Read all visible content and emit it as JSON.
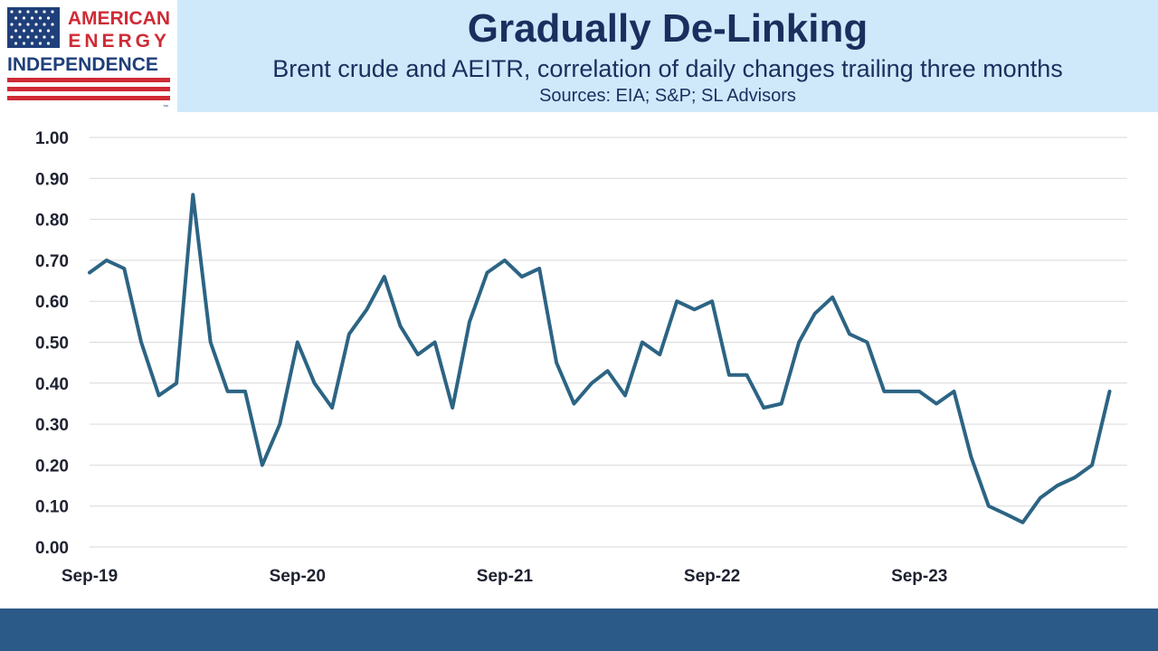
{
  "logo": {
    "line1": "AMERICAN",
    "line2": "ENERGY",
    "line3": "INDEPENDENCE",
    "trademark": "™"
  },
  "header": {
    "title": "Gradually De-Linking",
    "subtitle": "Brent crude and AEITR, correlation of daily changes trailing three months",
    "sources": "Sources: EIA; S&P; SL Advisors"
  },
  "colors": {
    "line": "#2c6484",
    "header_bg": "#cfe9fb",
    "title_text": "#1b2f5e",
    "footer_bg": "#2b5988",
    "flag_red": "#cf2b36",
    "flag_blue": "#1f3f7a"
  },
  "chart_data": {
    "type": "line",
    "title": "Gradually De-Linking",
    "subtitle": "Brent crude and AEITR, correlation of daily changes trailing three months",
    "xlabel": "",
    "ylabel": "",
    "ylim": [
      0,
      1.0
    ],
    "xlim": [
      "2019-09",
      "2024-09"
    ],
    "yticks": [
      "1.00",
      "0.90",
      "0.80",
      "0.70",
      "0.60",
      "0.50",
      "0.40",
      "0.30",
      "0.20",
      "0.10",
      "0.00"
    ],
    "xticks": [
      "Sep-19",
      "Sep-20",
      "Sep-21",
      "Sep-22",
      "Sep-23"
    ],
    "grid": "horizontal",
    "legend": "none",
    "series": [
      {
        "x": [
          "2019-09",
          "2019-10",
          "2019-11",
          "2019-12",
          "2020-01",
          "2020-02",
          "2020-03",
          "2020-04",
          "2020-05",
          "2020-06",
          "2020-07",
          "2020-08",
          "2020-09",
          "2020-10",
          "2020-11",
          "2020-12",
          "2021-01",
          "2021-02",
          "2021-03",
          "2021-04",
          "2021-05",
          "2021-06",
          "2021-07",
          "2021-08",
          "2021-09",
          "2021-10",
          "2021-11",
          "2021-12",
          "2022-01",
          "2022-02",
          "2022-03",
          "2022-04",
          "2022-05",
          "2022-06",
          "2022-07",
          "2022-08",
          "2022-09",
          "2022-10",
          "2022-11",
          "2022-12",
          "2023-01",
          "2023-02",
          "2023-03",
          "2023-04",
          "2023-05",
          "2023-06",
          "2023-07",
          "2023-08",
          "2023-09",
          "2023-10",
          "2023-11",
          "2023-12",
          "2024-01",
          "2024-02",
          "2024-03",
          "2024-04",
          "2024-05",
          "2024-06",
          "2024-07",
          "2024-08"
        ],
        "y": [
          0.67,
          0.7,
          0.68,
          0.5,
          0.37,
          0.4,
          0.86,
          0.5,
          0.38,
          0.38,
          0.2,
          0.3,
          0.5,
          0.4,
          0.34,
          0.52,
          0.58,
          0.66,
          0.54,
          0.47,
          0.5,
          0.34,
          0.55,
          0.67,
          0.7,
          0.66,
          0.68,
          0.45,
          0.35,
          0.4,
          0.43,
          0.37,
          0.5,
          0.47,
          0.6,
          0.58,
          0.6,
          0.42,
          0.42,
          0.34,
          0.35,
          0.5,
          0.57,
          0.61,
          0.52,
          0.5,
          0.38,
          0.38,
          0.38,
          0.35,
          0.38,
          0.22,
          0.1,
          0.08,
          0.06,
          0.12,
          0.15,
          0.17,
          0.2,
          0.38
        ]
      }
    ]
  }
}
